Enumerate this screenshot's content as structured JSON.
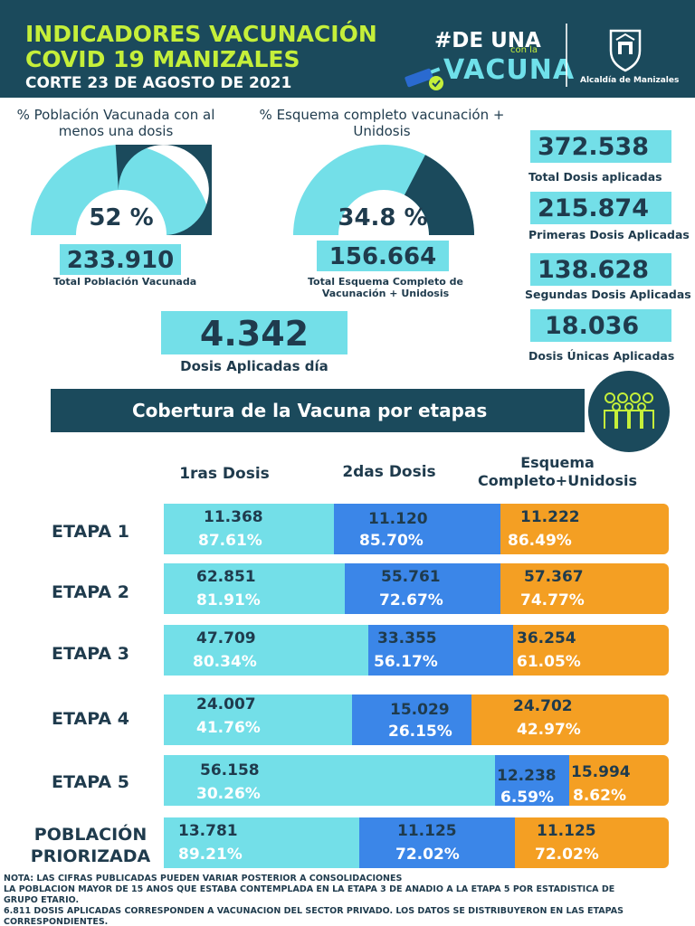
{
  "header": {
    "title_line1": "INDICADORES VACUNACIÓN",
    "title_line2": "COVID 19 MANIZALES",
    "subtitle": "CORTE 23 DE AGOSTO DE 2021",
    "campaign_hash": "#DE UNA",
    "campaign_conla": "con la",
    "campaign_vacuna": "VACUNA",
    "alcaldia": "Alcaldía de Manizales",
    "accent_color": "#c5ef3a",
    "bg_color": "#1b4a5c"
  },
  "indicators": {
    "one_dose": {
      "label": "% Población Vacunada con al menos una dosis",
      "percent_text": "52 %",
      "percent_value": 52,
      "value": "233.910",
      "caption": "Total Población Vacunada"
    },
    "complete": {
      "label": "% Esquema completo vacunación + Unidosis",
      "percent_text": "34.8 %",
      "percent_value": 34.8,
      "value": "156.664",
      "caption": "Total Esquema Completo de Vacunación + Unidosis"
    },
    "daily": {
      "value": "4.342",
      "caption": "Dosis Aplicadas día"
    },
    "totals": [
      {
        "value": "372.538",
        "caption": "Total Dosis aplicadas"
      },
      {
        "value": "215.874",
        "caption": "Primeras Dosis Aplicadas"
      },
      {
        "value": "138.628",
        "caption": "Segundas Dosis Aplicadas"
      },
      {
        "value": "18.036",
        "caption": "Dosis Únicas Aplicadas"
      }
    ]
  },
  "coverage": {
    "banner": "Cobertura de la Vacuna por etapas",
    "group_icon": "people-group-icon",
    "headers": [
      "1ras Dosis",
      "2das Dosis",
      "Esquema",
      "Completo+Unidosis"
    ],
    "colors": {
      "first": "#73dfe8",
      "second": "#3b86e8",
      "complete": "#f49f23"
    },
    "rows": [
      {
        "label": "ETAPA 1",
        "first_n": "11.368",
        "first_p": "87.61%",
        "second_n": "11.120",
        "second_p": "85.70%",
        "complete_n": "11.222",
        "complete_p": "86.49%"
      },
      {
        "label": "ETAPA 2",
        "first_n": "62.851",
        "first_p": "81.91%",
        "second_n": "55.761",
        "second_p": "72.67%",
        "complete_n": "57.367",
        "complete_p": "74.77%"
      },
      {
        "label": "ETAPA 3",
        "first_n": "47.709",
        "first_p": "80.34%",
        "second_n": "33.355",
        "second_p": "56.17%",
        "complete_n": "36.254",
        "complete_p": "61.05%"
      },
      {
        "label": "ETAPA 4",
        "first_n": "24.007",
        "first_p": "41.76%",
        "second_n": "15.029",
        "second_p": "26.15%",
        "complete_n": "24.702",
        "complete_p": "42.97%"
      },
      {
        "label": "ETAPA 5",
        "first_n": "56.158",
        "first_p": "30.26%",
        "second_n": "12.238",
        "second_p": "6.59%",
        "complete_n": "15.994",
        "complete_p": "8.62%"
      },
      {
        "label_line1": "POBLACIÓN",
        "label_line2": "PRIORIZADA",
        "first_n": "13.781",
        "first_p": "89.21%",
        "second_n": "11.125",
        "second_p": "72.02%",
        "complete_n": "11.125",
        "complete_p": "72.02%"
      }
    ]
  },
  "notes": [
    "NOTA: LAS CIFRAS PUBLICADAS PUEDEN VARIAR POSTERIOR A CONSOLIDACIONES",
    "LA POBLACIÓN MAYOR  DE 15 AÑOS  QUE ESTABA CONTEMPLADA EN LA ETAPA 3 DE AÑADIÓ A LA ETAPA 5 POR ESTADÍSTICA DE",
    "GRUPO ETARIO.",
    "6.811 DOSIS APLICADAS CORRESPONDEN A VACUNACIÓN  DEL SECTOR PRIVADO. LOS DATOS SE DISTRIBUYERON EN LAS ETAPAS",
    "CORRESPONDIENTES."
  ]
}
